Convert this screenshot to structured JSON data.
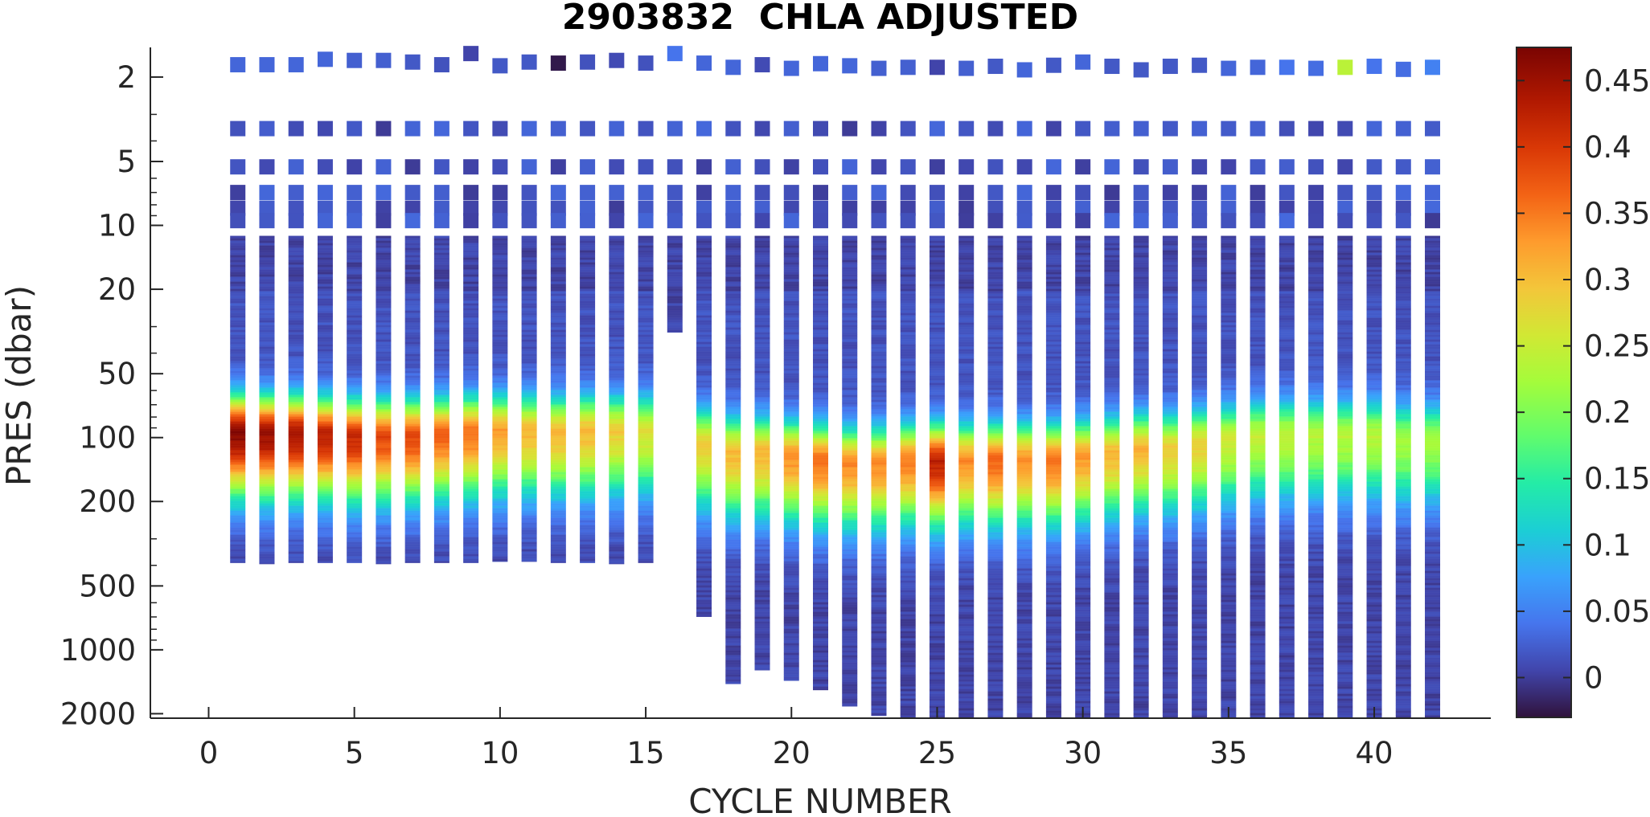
{
  "chart_data": {
    "type": "heatmap",
    "title": "2903832  CHLA ADJUSTED",
    "xlabel": "CYCLE NUMBER",
    "ylabel": "PRES (dbar)",
    "xlim": [
      -2,
      44
    ],
    "ylim": [
      1.45,
      2100
    ],
    "y_scale": "log",
    "x_ticks": [
      0,
      5,
      10,
      15,
      20,
      25,
      30,
      35,
      40
    ],
    "y_ticks": [
      2,
      5,
      10,
      20,
      50,
      100,
      200,
      500,
      1000,
      2000
    ],
    "colorbar": {
      "colormap": "turbo",
      "range": [
        -0.03,
        0.475
      ],
      "ticks": [
        0,
        0.05,
        0.1,
        0.15,
        0.2,
        0.25,
        0.3,
        0.35,
        0.4,
        0.45
      ]
    },
    "cycles": [
      1,
      2,
      3,
      4,
      5,
      6,
      7,
      8,
      9,
      10,
      11,
      12,
      13,
      14,
      15,
      16,
      17,
      18,
      19,
      20,
      21,
      22,
      23,
      24,
      25,
      26,
      27,
      28,
      29,
      30,
      31,
      32,
      33,
      34,
      35,
      36,
      37,
      38,
      39,
      40,
      41,
      42
    ],
    "profile_max_pressure_dbar": [
      390,
      395,
      390,
      390,
      390,
      395,
      390,
      390,
      390,
      385,
      385,
      390,
      390,
      395,
      390,
      32,
      700,
      1450,
      1250,
      1400,
      1550,
      1850,
      2050,
      2100,
      2100,
      2100,
      2100,
      2100,
      2100,
      2100,
      2100,
      2100,
      2100,
      2100,
      2100,
      2100,
      2100,
      2100,
      2100,
      2100,
      2100,
      2100
    ],
    "near_surface_pressure_dbar": [
      1.75,
      1.75,
      1.75,
      1.65,
      1.67,
      1.67,
      1.7,
      1.75,
      1.55,
      1.77,
      1.7,
      1.72,
      1.7,
      1.67,
      1.72,
      1.55,
      1.72,
      1.8,
      1.75,
      1.82,
      1.73,
      1.77,
      1.82,
      1.8,
      1.8,
      1.82,
      1.78,
      1.85,
      1.76,
      1.7,
      1.78,
      1.85,
      1.78,
      1.76,
      1.82,
      1.8,
      1.8,
      1.82,
      1.8,
      1.78,
      1.84,
      1.8
    ],
    "near_surface_chla": [
      0.03,
      0.03,
      0.03,
      0.03,
      0.025,
      0.025,
      0.02,
      0.015,
      0.005,
      0.02,
      0.02,
      -0.025,
      0.015,
      0.01,
      0.015,
      0.04,
      0.03,
      0.03,
      0.01,
      0.03,
      0.03,
      0.03,
      0.025,
      0.025,
      0.005,
      0.025,
      0.02,
      0.03,
      0.02,
      0.03,
      0.02,
      0.02,
      0.02,
      0.02,
      0.03,
      0.03,
      0.04,
      0.035,
      0.24,
      0.04,
      0.035,
      0.05
    ],
    "fixed_levels_dbar": [
      3.5,
      5.3,
      7.0,
      8.3,
      9.5
    ],
    "fixed_levels_chla_mean": 0.015,
    "chla_max_depth_dbar": [
      95,
      96,
      96,
      98,
      100,
      100,
      100,
      98,
      96,
      95,
      95,
      96,
      95,
      95,
      95,
      null,
      110,
      120,
      120,
      125,
      130,
      135,
      135,
      130,
      130,
      130,
      130,
      130,
      130,
      125,
      120,
      115,
      115,
      110,
      105,
      100,
      100,
      100,
      100,
      100,
      105,
      105
    ],
    "chla_max_value": [
      0.46,
      0.45,
      0.44,
      0.42,
      0.41,
      0.38,
      0.38,
      0.36,
      0.35,
      0.32,
      0.3,
      0.3,
      0.3,
      0.28,
      0.26,
      null,
      0.28,
      0.3,
      0.3,
      0.33,
      0.35,
      0.33,
      0.33,
      0.34,
      0.42,
      0.33,
      0.36,
      0.33,
      0.35,
      0.32,
      0.3,
      0.3,
      0.28,
      0.28,
      0.25,
      0.24,
      0.24,
      0.23,
      0.23,
      0.23,
      0.22,
      0.22
    ],
    "deep_background_chla": 0.005
  }
}
